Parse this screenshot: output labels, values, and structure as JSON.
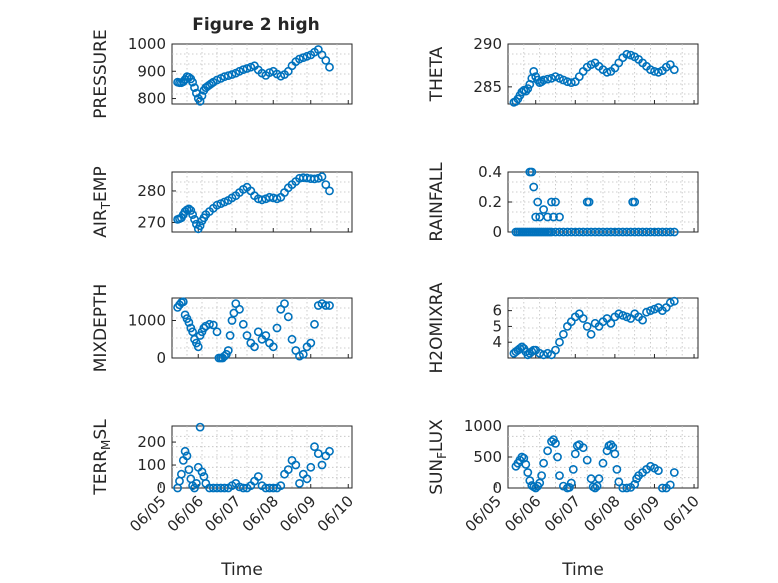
{
  "figure": {
    "title": "Figure 2 high"
  },
  "chart_data": [
    {
      "type": "scatter",
      "title": "Figure 2 high",
      "ylabel": "PRESSURE",
      "xlabel": "",
      "xlim": [
        0.3,
        5.1
      ],
      "ylim": [
        780,
        1000
      ],
      "yticks": [
        800,
        900,
        1000
      ],
      "xtick_labels": [],
      "x": [
        0.45,
        0.5,
        0.55,
        0.6,
        0.65,
        0.7,
        0.75,
        0.8,
        0.85,
        0.9,
        0.95,
        1.0,
        1.05,
        1.1,
        1.15,
        1.2,
        1.25,
        1.3,
        1.35,
        1.4,
        1.5,
        1.6,
        1.7,
        1.8,
        1.9,
        2.0,
        2.1,
        2.2,
        2.3,
        2.4,
        2.5,
        2.6,
        2.7,
        2.8,
        2.9,
        3.0,
        3.1,
        3.2,
        3.3,
        3.4,
        3.5,
        3.6,
        3.7,
        3.8,
        3.9,
        4.0,
        4.1,
        4.2,
        4.3,
        4.4,
        4.5
      ],
      "y": [
        860,
        858,
        858,
        862,
        870,
        880,
        878,
        872,
        860,
        840,
        820,
        800,
        790,
        810,
        830,
        840,
        845,
        850,
        855,
        860,
        868,
        874,
        880,
        884,
        888,
        893,
        900,
        906,
        910,
        915,
        920,
        905,
        893,
        885,
        895,
        900,
        890,
        882,
        888,
        900,
        920,
        935,
        945,
        950,
        955,
        960,
        970,
        980,
        960,
        940,
        915
      ]
    },
    {
      "type": "scatter",
      "ylabel": "THETA",
      "xlabel": "",
      "xlim": [
        0.3,
        5.1
      ],
      "ylim": [
        283,
        290
      ],
      "yticks": [
        285,
        290
      ],
      "xtick_labels": [],
      "x": [
        0.45,
        0.5,
        0.55,
        0.6,
        0.65,
        0.7,
        0.75,
        0.8,
        0.85,
        0.9,
        0.95,
        1.0,
        1.05,
        1.1,
        1.15,
        1.2,
        1.3,
        1.4,
        1.5,
        1.6,
        1.7,
        1.8,
        1.9,
        2.0,
        2.1,
        2.2,
        2.3,
        2.4,
        2.5,
        2.6,
        2.7,
        2.8,
        2.9,
        3.0,
        3.1,
        3.2,
        3.3,
        3.4,
        3.5,
        3.6,
        3.7,
        3.8,
        3.9,
        4.0,
        4.1,
        4.2,
        4.3,
        4.4,
        4.5
      ],
      "y": [
        283.2,
        283.3,
        283.6,
        284.0,
        284.4,
        284.6,
        284.5,
        284.8,
        285.3,
        286.0,
        286.8,
        286.2,
        285.8,
        285.5,
        285.6,
        285.8,
        285.9,
        286.0,
        286.2,
        286.0,
        285.8,
        285.6,
        285.5,
        285.6,
        286.2,
        286.8,
        287.3,
        287.6,
        287.8,
        287.4,
        287.0,
        286.7,
        286.8,
        287.2,
        287.8,
        288.4,
        288.8,
        288.7,
        288.5,
        288.2,
        287.8,
        287.4,
        287.0,
        286.8,
        286.7,
        286.9,
        287.3,
        287.6,
        287.0
      ]
    },
    {
      "type": "scatter",
      "ylabel": "AIR_TEMP",
      "xlabel": "",
      "xlim": [
        0.3,
        5.1
      ],
      "ylim": [
        267,
        286
      ],
      "yticks": [
        270,
        280
      ],
      "xtick_labels": [],
      "x": [
        0.45,
        0.5,
        0.55,
        0.6,
        0.65,
        0.7,
        0.75,
        0.8,
        0.85,
        0.9,
        0.95,
        1.0,
        1.05,
        1.1,
        1.15,
        1.2,
        1.3,
        1.4,
        1.5,
        1.6,
        1.7,
        1.8,
        1.9,
        2.0,
        2.1,
        2.2,
        2.3,
        2.4,
        2.5,
        2.6,
        2.7,
        2.8,
        2.9,
        3.0,
        3.1,
        3.2,
        3.3,
        3.4,
        3.5,
        3.6,
        3.7,
        3.8,
        3.9,
        4.0,
        4.1,
        4.2,
        4.3,
        4.4,
        4.5
      ],
      "y": [
        271,
        271.2,
        271.5,
        272.5,
        273.5,
        274,
        274.3,
        273.8,
        272.5,
        271,
        269.5,
        268,
        269,
        270.5,
        271.5,
        272.5,
        273.5,
        274.5,
        275.5,
        276,
        276.5,
        277,
        277.8,
        278.5,
        279.5,
        280.5,
        281.2,
        280,
        278.5,
        277.5,
        277.2,
        277.5,
        278,
        277.8,
        277.5,
        278,
        279.5,
        281,
        282,
        283,
        284,
        284.2,
        284.1,
        283.9,
        283.8,
        284.0,
        284.5,
        282,
        280
      ]
    },
    {
      "type": "scatter",
      "ylabel": "RAINFALL",
      "xlabel": "",
      "xlim": [
        0.3,
        5.1
      ],
      "ylim": [
        0,
        0.4
      ],
      "yticks": [
        0,
        0.2,
        0.4
      ],
      "xtick_labels": [],
      "x": [
        0.5,
        0.55,
        0.6,
        0.65,
        0.7,
        0.75,
        0.8,
        0.85,
        0.9,
        0.95,
        1.0,
        1.05,
        1.1,
        1.15,
        1.2,
        1.25,
        1.3,
        1.35,
        1.4,
        1.5,
        1.6,
        1.7,
        1.8,
        1.9,
        2.0,
        2.1,
        2.2,
        2.3,
        2.4,
        2.5,
        2.6,
        2.7,
        2.8,
        2.9,
        3.0,
        3.1,
        3.2,
        3.3,
        3.4,
        3.5,
        3.6,
        3.7,
        3.8,
        3.9,
        4.0,
        4.1,
        4.2,
        4.3,
        4.4,
        4.5,
        0.85,
        0.9,
        0.95,
        1.0,
        1.05,
        1.1,
        1.2,
        1.3,
        1.4,
        1.45,
        1.5,
        1.6,
        2.3,
        2.35,
        3.45,
        3.5
      ],
      "y": [
        0,
        0,
        0,
        0,
        0,
        0,
        0,
        0,
        0,
        0,
        0,
        0,
        0,
        0,
        0,
        0,
        0,
        0,
        0,
        0,
        0,
        0,
        0,
        0,
        0,
        0,
        0,
        0,
        0,
        0,
        0,
        0,
        0,
        0,
        0,
        0,
        0,
        0,
        0,
        0,
        0,
        0,
        0,
        0,
        0,
        0,
        0,
        0,
        0,
        0,
        0.4,
        0.4,
        0.3,
        0.1,
        0.2,
        0.1,
        0.15,
        0.1,
        0.2,
        0.1,
        0.2,
        0.1,
        0.2,
        0.2,
        0.2,
        0.2
      ]
    },
    {
      "type": "scatter",
      "ylabel": "MIXDEPTH",
      "xlabel": "",
      "xlim": [
        0.3,
        5.1
      ],
      "ylim": [
        0,
        1600
      ],
      "yticks": [
        0,
        1000
      ],
      "xtick_labels": [],
      "x": [
        0.45,
        0.5,
        0.55,
        0.6,
        0.65,
        0.7,
        0.75,
        0.8,
        0.85,
        0.9,
        0.95,
        1.0,
        1.05,
        1.1,
        1.15,
        1.2,
        1.3,
        1.4,
        1.5,
        1.55,
        1.6,
        1.65,
        1.7,
        1.75,
        1.8,
        1.85,
        1.9,
        1.95,
        2.0,
        2.1,
        2.2,
        2.3,
        2.4,
        2.5,
        2.6,
        2.7,
        2.8,
        2.9,
        3.0,
        3.1,
        3.2,
        3.3,
        3.4,
        3.5,
        3.6,
        3.7,
        3.8,
        3.9,
        4.0,
        4.1,
        4.2,
        4.3,
        4.4,
        4.5
      ],
      "y": [
        1350,
        1420,
        1480,
        1500,
        1150,
        1050,
        950,
        800,
        700,
        500,
        400,
        300,
        600,
        700,
        800,
        850,
        900,
        880,
        700,
        0,
        0,
        0,
        50,
        100,
        200,
        600,
        1000,
        1200,
        1450,
        1300,
        900,
        600,
        400,
        300,
        700,
        500,
        600,
        400,
        300,
        800,
        1300,
        1450,
        1100,
        500,
        200,
        50,
        100,
        300,
        400,
        900,
        1400,
        1450,
        1400,
        1400
      ]
    },
    {
      "type": "scatter",
      "ylabel": "H2OMIXRA",
      "xlabel": "",
      "xlim": [
        0.3,
        5.1
      ],
      "ylim": [
        3,
        6.8
      ],
      "yticks": [
        4,
        5,
        6
      ],
      "xtick_labels": [],
      "x": [
        0.45,
        0.5,
        0.55,
        0.6,
        0.65,
        0.7,
        0.75,
        0.8,
        0.85,
        0.9,
        0.95,
        1.0,
        1.1,
        1.2,
        1.3,
        1.4,
        1.5,
        1.6,
        1.7,
        1.8,
        1.9,
        2.0,
        2.1,
        2.2,
        2.3,
        2.4,
        2.5,
        2.6,
        2.7,
        2.8,
        2.9,
        3.0,
        3.1,
        3.2,
        3.3,
        3.4,
        3.5,
        3.6,
        3.7,
        3.8,
        3.9,
        4.0,
        4.1,
        4.2,
        4.3,
        4.4,
        4.5
      ],
      "y": [
        3.3,
        3.4,
        3.5,
        3.6,
        3.7,
        3.6,
        3.4,
        3.2,
        3.3,
        3.4,
        3.5,
        3.5,
        3.3,
        3.2,
        3.3,
        3.2,
        3.5,
        4.0,
        4.5,
        5.0,
        5.3,
        5.6,
        5.8,
        5.5,
        5.0,
        4.5,
        5.2,
        5.0,
        5.3,
        5.5,
        5.2,
        5.6,
        5.8,
        5.7,
        5.6,
        5.5,
        5.8,
        5.6,
        5.4,
        5.9,
        6.0,
        6.1,
        6.2,
        6.0,
        6.2,
        6.5,
        6.6
      ]
    },
    {
      "type": "scatter",
      "ylabel": "TERR_MSL",
      "xlabel": "Time",
      "xlim": [
        0.3,
        5.1
      ],
      "ylim": [
        0,
        270
      ],
      "yticks": [
        0,
        100,
        200
      ],
      "xtick_labels": [
        "06/05",
        "06/06",
        "06/07",
        "06/08",
        "06/09",
        "06/10"
      ],
      "x": [
        0.45,
        0.5,
        0.55,
        0.6,
        0.65,
        0.7,
        0.75,
        0.8,
        0.85,
        0.9,
        0.95,
        1.0,
        1.05,
        1.1,
        1.15,
        1.2,
        1.3,
        1.4,
        1.5,
        1.6,
        1.7,
        1.8,
        1.9,
        2.0,
        2.1,
        2.2,
        2.3,
        2.4,
        2.5,
        2.6,
        2.7,
        2.8,
        2.9,
        3.0,
        3.1,
        3.2,
        3.3,
        3.4,
        3.5,
        3.6,
        3.7,
        3.8,
        3.9,
        4.0,
        4.1,
        4.2,
        4.3,
        4.4,
        4.5
      ],
      "y": [
        0,
        30,
        60,
        120,
        160,
        140,
        80,
        40,
        10,
        0,
        20,
        90,
        265,
        70,
        50,
        20,
        0,
        0,
        0,
        0,
        0,
        0,
        10,
        20,
        5,
        0,
        0,
        10,
        30,
        50,
        10,
        0,
        0,
        0,
        0,
        10,
        60,
        80,
        120,
        100,
        20,
        60,
        40,
        90,
        180,
        150,
        100,
        140,
        160
      ]
    },
    {
      "type": "scatter",
      "ylabel": "SUN_FLUX",
      "xlabel": "Time",
      "xlim": [
        0.3,
        5.1
      ],
      "ylim": [
        0,
        1000
      ],
      "yticks": [
        0,
        500,
        1000
      ],
      "xtick_labels": [
        "06/05",
        "06/06",
        "06/07",
        "06/08",
        "06/09",
        "06/10"
      ],
      "x": [
        0.5,
        0.55,
        0.6,
        0.65,
        0.7,
        0.75,
        0.8,
        0.85,
        0.9,
        0.95,
        1.0,
        1.05,
        1.1,
        1.15,
        1.2,
        1.3,
        1.4,
        1.45,
        1.5,
        1.55,
        1.6,
        1.7,
        1.8,
        1.85,
        1.9,
        1.95,
        2.0,
        2.05,
        2.1,
        2.2,
        2.3,
        2.4,
        2.45,
        2.5,
        2.55,
        2.6,
        2.7,
        2.8,
        2.85,
        2.9,
        2.95,
        3.0,
        3.05,
        3.1,
        3.2,
        3.3,
        3.4,
        3.5,
        3.55,
        3.6,
        3.7,
        3.8,
        3.9,
        4.0,
        4.1,
        4.2,
        4.3,
        4.4,
        4.5
      ],
      "y": [
        350,
        400,
        450,
        500,
        480,
        380,
        250,
        120,
        40,
        20,
        0,
        30,
        80,
        200,
        400,
        600,
        750,
        780,
        720,
        500,
        200,
        30,
        0,
        10,
        80,
        300,
        550,
        680,
        700,
        650,
        450,
        150,
        20,
        0,
        30,
        150,
        400,
        600,
        680,
        700,
        660,
        550,
        300,
        100,
        0,
        0,
        10,
        60,
        150,
        200,
        250,
        300,
        350,
        320,
        280,
        0,
        0,
        50,
        250
      ]
    }
  ]
}
